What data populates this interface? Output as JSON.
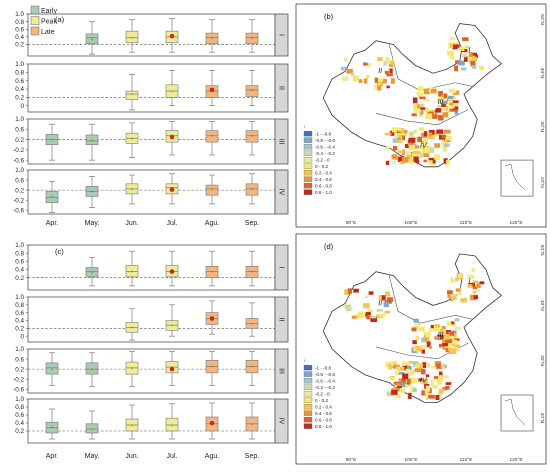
{
  "colors": {
    "early": "#a7ccb2",
    "peak": "#f0ec98",
    "late": "#f2b583",
    "mean_marker": "#cc2a18",
    "strip": "#d6d6d6",
    "median": "#8a8a5a",
    "dash": "#555555"
  },
  "legend": {
    "items": [
      {
        "label": "Early",
        "color": "#a7ccb2"
      },
      {
        "label": "Peak",
        "color": "#f0ec98"
      },
      {
        "label": "Late",
        "color": "#f2b583"
      }
    ]
  },
  "month_labels": [
    "Apr.",
    "May.",
    "Jun.",
    "Jul.",
    "Agu.",
    "Sep."
  ],
  "chart_data": [
    {
      "type": "box",
      "panel_label": "(a)",
      "categories": [
        "Apr.",
        "May.",
        "Jun.",
        "Jul.",
        "Agu.",
        "Sep."
      ],
      "stage_by_month": [
        "Early",
        "Early",
        "Peak",
        "Peak",
        "Late",
        "Late"
      ],
      "rows": [
        {
          "region": "I",
          "ylim": [
            -0.1,
            1.0
          ],
          "yticks": [
            "1.0",
            "0.8",
            "0.6",
            "0.4",
            "0.2"
          ],
          "ytick_values": [
            1.0,
            0.8,
            0.6,
            0.4,
            0.2
          ],
          "ref_line": 0.2,
          "boxes": [
            null,
            {
              "stage": "Early",
              "min": -0.05,
              "q1": 0.22,
              "median": 0.38,
              "q3": 0.48,
              "max": 0.8,
              "mean": 0.35
            },
            {
              "stage": "Peak",
              "min": 0.0,
              "q1": 0.25,
              "median": 0.38,
              "q3": 0.55,
              "max": 0.85,
              "mean": 0.38
            },
            {
              "stage": "Peak",
              "min": 0.0,
              "q1": 0.25,
              "median": 0.4,
              "q3": 0.55,
              "max": 0.88,
              "mean": 0.42,
              "highlight": true
            },
            {
              "stage": "Late",
              "min": 0.0,
              "q1": 0.22,
              "median": 0.38,
              "q3": 0.5,
              "max": 0.85,
              "mean": 0.37
            },
            {
              "stage": "Late",
              "min": 0.0,
              "q1": 0.22,
              "median": 0.38,
              "q3": 0.5,
              "max": 0.85,
              "mean": 0.37
            }
          ]
        },
        {
          "region": "II",
          "ylim": [
            -0.15,
            1.0
          ],
          "yticks": [
            "1.0",
            "0.8",
            "0.6",
            "0.4",
            "0.2",
            "0"
          ],
          "ytick_values": [
            1.0,
            0.8,
            0.6,
            0.4,
            0.2,
            0.0
          ],
          "ref_line": 0.2,
          "boxes": [
            null,
            null,
            {
              "stage": "Peak",
              "min": -0.1,
              "q1": 0.15,
              "median": 0.28,
              "q3": 0.35,
              "max": 0.75,
              "mean": 0.28
            },
            {
              "stage": "Peak",
              "min": 0.0,
              "q1": 0.2,
              "median": 0.35,
              "q3": 0.5,
              "max": 0.85,
              "mean": 0.35
            },
            {
              "stage": "Late",
              "min": 0.0,
              "q1": 0.2,
              "median": 0.35,
              "q3": 0.48,
              "max": 0.85,
              "mean": 0.38,
              "highlight": true
            },
            {
              "stage": "Late",
              "min": 0.0,
              "q1": 0.22,
              "median": 0.38,
              "q3": 0.48,
              "max": 0.85,
              "mean": 0.38
            }
          ]
        },
        {
          "region": "III",
          "ylim": [
            -0.75,
            1.0
          ],
          "yticks": [
            "1.0",
            "0.6",
            "0.2",
            "-0.2",
            "-0.6"
          ],
          "ytick_values": [
            1.0,
            0.6,
            0.2,
            -0.2,
            -0.6
          ],
          "ref_line": 0.2,
          "boxes": [
            {
              "stage": "Early",
              "min": -0.6,
              "q1": 0.0,
              "median": 0.2,
              "q3": 0.4,
              "max": 0.8,
              "mean": 0.2
            },
            {
              "stage": "Early",
              "min": -0.6,
              "q1": 0.0,
              "median": 0.15,
              "q3": 0.38,
              "max": 0.8,
              "mean": 0.18
            },
            {
              "stage": "Peak",
              "min": -0.5,
              "q1": 0.05,
              "median": 0.25,
              "q3": 0.45,
              "max": 0.85,
              "mean": 0.25
            },
            {
              "stage": "Peak",
              "min": -0.4,
              "q1": 0.1,
              "median": 0.35,
              "q3": 0.55,
              "max": 0.9,
              "mean": 0.3,
              "highlight": true
            },
            {
              "stage": "Late",
              "min": -0.4,
              "q1": 0.1,
              "median": 0.35,
              "q3": 0.55,
              "max": 0.9,
              "mean": 0.35
            },
            {
              "stage": "Late",
              "min": -0.4,
              "q1": 0.1,
              "median": 0.35,
              "q3": 0.55,
              "max": 0.9,
              "mean": 0.35
            }
          ]
        },
        {
          "region": "IV",
          "ylim": [
            -0.75,
            1.0
          ],
          "yticks": [
            "1.0",
            "0.6",
            "0.2",
            "-0.2",
            "-0.6"
          ],
          "ytick_values": [
            1.0,
            0.6,
            0.2,
            -0.2,
            -0.6
          ],
          "ref_line": 0.2,
          "boxes": [
            {
              "stage": "Early",
              "min": -0.7,
              "q1": -0.3,
              "median": -0.1,
              "q3": 0.15,
              "max": 0.55,
              "mean": -0.05
            },
            {
              "stage": "Early",
              "min": -0.5,
              "q1": -0.05,
              "median": 0.15,
              "q3": 0.35,
              "max": 0.75,
              "mean": 0.15
            },
            {
              "stage": "Peak",
              "min": -0.35,
              "q1": 0.05,
              "median": 0.25,
              "q3": 0.45,
              "max": 0.8,
              "mean": 0.25
            },
            {
              "stage": "Peak",
              "min": -0.35,
              "q1": 0.05,
              "median": 0.3,
              "q3": 0.45,
              "max": 0.85,
              "mean": 0.22,
              "highlight": true
            },
            {
              "stage": "Late",
              "min": -0.35,
              "q1": 0.0,
              "median": 0.25,
              "q3": 0.4,
              "max": 0.8,
              "mean": 0.25
            },
            {
              "stage": "Late",
              "min": -0.35,
              "q1": 0.0,
              "median": 0.25,
              "q3": 0.45,
              "max": 0.85,
              "mean": 0.25
            }
          ]
        }
      ]
    },
    {
      "type": "box",
      "panel_label": "(c)",
      "categories": [
        "Apr.",
        "May.",
        "Jun.",
        "Jul.",
        "Agu.",
        "Sep."
      ],
      "stage_by_month": [
        "Early",
        "Early",
        "Peak",
        "Peak",
        "Late",
        "Late"
      ],
      "rows": [
        {
          "region": "I",
          "ylim": [
            -0.1,
            1.0
          ],
          "yticks": [
            "1.0",
            "0.8",
            "0.6",
            "0.4",
            "0.2"
          ],
          "ytick_values": [
            1.0,
            0.8,
            0.6,
            0.4,
            0.2
          ],
          "ref_line": 0.2,
          "boxes": [
            null,
            {
              "stage": "Early",
              "min": 0.0,
              "q1": 0.22,
              "median": 0.35,
              "q3": 0.45,
              "max": 0.7,
              "mean": 0.33
            },
            {
              "stage": "Peak",
              "min": 0.0,
              "q1": 0.22,
              "median": 0.35,
              "q3": 0.5,
              "max": 0.85,
              "mean": 0.35
            },
            {
              "stage": "Peak",
              "min": 0.0,
              "q1": 0.22,
              "median": 0.35,
              "q3": 0.5,
              "max": 0.85,
              "mean": 0.35,
              "highlight": true
            },
            {
              "stage": "Late",
              "min": 0.0,
              "q1": 0.2,
              "median": 0.35,
              "q3": 0.48,
              "max": 0.85,
              "mean": 0.35
            },
            {
              "stage": "Late",
              "min": 0.0,
              "q1": 0.2,
              "median": 0.35,
              "q3": 0.48,
              "max": 0.85,
              "mean": 0.35
            }
          ]
        },
        {
          "region": "II",
          "ylim": [
            -0.15,
            1.0
          ],
          "yticks": [
            "1.0",
            "0.8",
            "0.6",
            "0.4",
            "0.2",
            "0"
          ],
          "ytick_values": [
            1.0,
            0.8,
            0.6,
            0.4,
            0.2,
            0.0
          ],
          "ref_line": 0.2,
          "boxes": [
            null,
            null,
            {
              "stage": "Peak",
              "min": -0.1,
              "q1": 0.1,
              "median": 0.22,
              "q3": 0.35,
              "max": 0.7,
              "mean": 0.22
            },
            {
              "stage": "Peak",
              "min": 0.0,
              "q1": 0.15,
              "median": 0.28,
              "q3": 0.4,
              "max": 0.8,
              "mean": 0.28
            },
            {
              "stage": "Late",
              "min": 0.05,
              "q1": 0.3,
              "median": 0.45,
              "q3": 0.6,
              "max": 0.9,
              "mean": 0.45,
              "highlight": true
            },
            {
              "stage": "Late",
              "min": 0.0,
              "q1": 0.2,
              "median": 0.32,
              "q3": 0.45,
              "max": 0.85,
              "mean": 0.32
            }
          ]
        },
        {
          "region": "III",
          "ylim": [
            -0.75,
            1.0
          ],
          "yticks": [
            "1.0",
            "0.6",
            "0.2",
            "-0.2",
            "-0.6"
          ],
          "ytick_values": [
            1.0,
            0.6,
            0.2,
            -0.2,
            -0.6
          ],
          "ref_line": 0.2,
          "boxes": [
            {
              "stage": "Early",
              "min": -0.45,
              "q1": 0.0,
              "median": 0.25,
              "q3": 0.45,
              "max": 0.85,
              "mean": 0.2
            },
            {
              "stage": "Early",
              "min": -0.5,
              "q1": 0.0,
              "median": 0.2,
              "q3": 0.45,
              "max": 0.85,
              "mean": 0.2
            },
            {
              "stage": "Peak",
              "min": -0.5,
              "q1": 0.0,
              "median": 0.25,
              "q3": 0.48,
              "max": 0.9,
              "mean": 0.25
            },
            {
              "stage": "Peak",
              "min": -0.45,
              "q1": 0.05,
              "median": 0.28,
              "q3": 0.5,
              "max": 0.9,
              "mean": 0.2,
              "highlight": true
            },
            {
              "stage": "Late",
              "min": -0.45,
              "q1": 0.05,
              "median": 0.3,
              "q3": 0.55,
              "max": 0.9,
              "mean": 0.3
            },
            {
              "stage": "Late",
              "min": -0.45,
              "q1": 0.05,
              "median": 0.3,
              "q3": 0.55,
              "max": 0.9,
              "mean": 0.3
            }
          ]
        },
        {
          "region": "IV",
          "ylim": [
            -0.1,
            1.0
          ],
          "yticks": [
            "1.0",
            "0.8",
            "0.6",
            "0.4",
            "0.2"
          ],
          "ytick_values": [
            1.0,
            0.8,
            0.6,
            0.4,
            0.2
          ],
          "ref_line": 0.2,
          "boxes": [
            {
              "stage": "Early",
              "min": 0.0,
              "q1": 0.15,
              "median": 0.28,
              "q3": 0.42,
              "max": 0.75,
              "mean": 0.3
            },
            {
              "stage": "Early",
              "min": 0.0,
              "q1": 0.15,
              "median": 0.25,
              "q3": 0.38,
              "max": 0.7,
              "mean": 0.25
            },
            {
              "stage": "Peak",
              "min": 0.0,
              "q1": 0.2,
              "median": 0.35,
              "q3": 0.5,
              "max": 0.85,
              "mean": 0.35
            },
            {
              "stage": "Peak",
              "min": 0.0,
              "q1": 0.2,
              "median": 0.35,
              "q3": 0.52,
              "max": 0.88,
              "mean": 0.35
            },
            {
              "stage": "Late",
              "min": 0.0,
              "q1": 0.2,
              "median": 0.38,
              "q3": 0.55,
              "max": 0.9,
              "mean": 0.4,
              "highlight": true
            },
            {
              "stage": "Late",
              "min": 0.0,
              "q1": 0.2,
              "median": 0.38,
              "q3": 0.55,
              "max": 0.9,
              "mean": 0.38
            }
          ]
        }
      ]
    }
  ],
  "maps": [
    {
      "panel_label": "(b)",
      "region_labels": [
        "I",
        "II",
        "III",
        "IV"
      ],
      "lon_labels": [
        "90°E",
        "100°E",
        "110°E",
        "120°E"
      ],
      "lat_labels": [
        "50°N",
        "40°N",
        "30°N",
        "20°N"
      ],
      "legend_items": [
        "-1 - -0.8",
        "-0.8 - -0.6",
        "-0.6 - -0.4",
        "-0.4 - -0.2",
        "-0.2 - 0",
        "0 - 0.2",
        "0.2 - 0.4",
        "0.4 - 0.6",
        "0.6 - 0.8",
        "0.8 - 1.0"
      ],
      "legend_colors": [
        "#4470b8",
        "#7ea6cf",
        "#a7c6c9",
        "#cfdcaa",
        "#e9eb9a",
        "#f6e86c",
        "#f4c454",
        "#e8973e",
        "#d9652b",
        "#c2291e"
      ],
      "legend_mark": "r"
    },
    {
      "panel_label": "(d)",
      "region_labels": [
        "I",
        "II",
        "III",
        "IV"
      ],
      "lon_labels": [
        "90°E",
        "100°E",
        "110°E",
        "120°E"
      ],
      "lat_labels": [
        "50°N",
        "40°N",
        "30°N",
        "20°N"
      ],
      "legend_items": [
        "-1 - -0.8",
        "-0.8 - -0.6",
        "-0.6 - -0.4",
        "-0.4 - -0.2",
        "-0.2 - 0",
        "0 - 0.2",
        "0.2 - 0.4",
        "0.4 - 0.6",
        "0.6 - 0.8",
        "0.8 - 1.0"
      ],
      "legend_colors": [
        "#4470b8",
        "#7ea6cf",
        "#a7c6c9",
        "#cfdcaa",
        "#e9eb9a",
        "#f6e86c",
        "#f4c454",
        "#e8973e",
        "#d9652b",
        "#c2291e"
      ],
      "legend_mark": "r"
    }
  ]
}
